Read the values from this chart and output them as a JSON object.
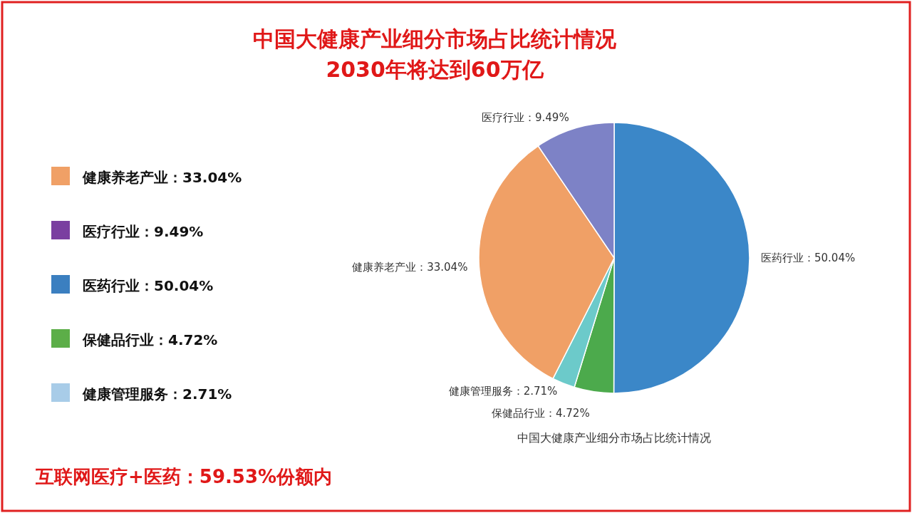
{
  "chart_data": [
    {
      "type": "pie",
      "title": "中国大健康产业细分市场占比统计情况",
      "subtitle": "2030年将达到60万亿",
      "categories": [
        "医药行业",
        "保健品行业",
        "健康管理服务",
        "健康养老产业",
        "医疗行业"
      ],
      "values": [
        50.04,
        4.72,
        2.71,
        33.04,
        9.49
      ],
      "colors": [
        "#3b87c8",
        "#4caa4c",
        "#6ccaca",
        "#f0a066",
        "#7d82c6"
      ],
      "value_labels": [
        "：50.04%",
        "：4.72%",
        "：2.71%",
        "：33.04%",
        "：9.49%"
      ],
      "annotations": [
        "中国大健康产业细分市场占比统计情况",
        "互联网医疗+医药：59.53%份额内"
      ]
    },
    {
      "type": "other",
      "annotations": [
        "健康养老产业：33.04%",
        "医疗行业：9.49%",
        "医药行业：50.04%",
        "保健品行业：4.72%",
        "健康管理服务：2.71%"
      ],
      "colors": [
        "#f0a066",
        "#7a3fa0",
        "#3b7fc0",
        "#5cae48",
        "#a8cce8"
      ]
    }
  ]
}
